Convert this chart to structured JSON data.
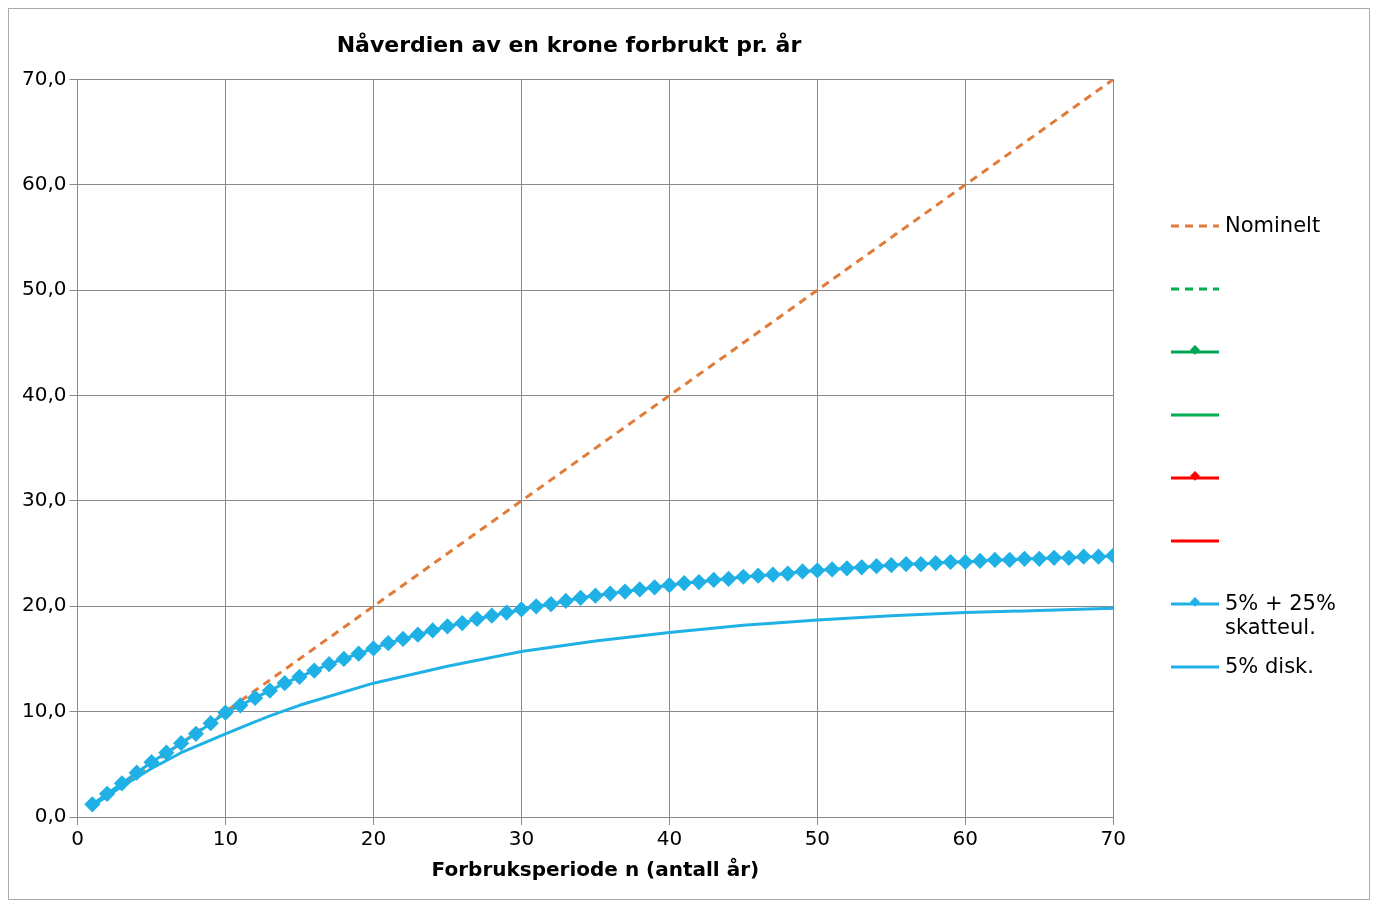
{
  "chart_data": {
    "type": "line",
    "title": "Nåverdien av en krone forbrukt pr. år",
    "xlabel": "Forbruksperiode n (antall år)",
    "xlim": [
      0,
      70
    ],
    "xticks": [
      0,
      10,
      20,
      30,
      40,
      50,
      60,
      70
    ],
    "ylim": [
      0,
      70
    ],
    "yticks": [
      {
        "value": 0,
        "label": "0,0"
      },
      {
        "value": 10,
        "label": "10,0"
      },
      {
        "value": 20,
        "label": "20,0"
      },
      {
        "value": 30,
        "label": "30,0"
      },
      {
        "value": 40,
        "label": "40,0"
      },
      {
        "value": 50,
        "label": "50,0"
      },
      {
        "value": 60,
        "label": "60,0"
      },
      {
        "value": 70,
        "label": "70,0"
      }
    ],
    "grid": true,
    "legend": "right",
    "series": [
      {
        "name": "Nominelt",
        "color": "#e07b39",
        "line_style": "dashed",
        "marker": "none",
        "x": [
          1,
          70
        ],
        "values": [
          1,
          70
        ]
      },
      {
        "color": "#00b050",
        "line_style": "dashed",
        "marker": "none"
      },
      {
        "color": "#00a550",
        "line_style": "solid",
        "marker": "diamond"
      },
      {
        "color": "#00b050",
        "line_style": "solid",
        "marker": "none"
      },
      {
        "color": "#ff0000",
        "line_style": "solid",
        "marker": "diamond"
      },
      {
        "color": "#ff0000",
        "line_style": "solid",
        "marker": "none"
      },
      {
        "name": "5% + 25% skatteul.",
        "color": "#1fb1e6",
        "line_style": "solid",
        "marker": "diamond",
        "x": [
          1,
          2,
          3,
          4,
          5,
          6,
          7,
          8,
          9,
          10,
          11,
          12,
          13,
          14,
          15,
          16,
          17,
          18,
          19,
          20,
          21,
          22,
          23,
          24,
          25,
          26,
          27,
          28,
          29,
          30,
          31,
          32,
          33,
          34,
          35,
          36,
          37,
          38,
          39,
          40,
          41,
          42,
          43,
          44,
          45,
          46,
          47,
          48,
          49,
          50,
          51,
          52,
          53,
          54,
          55,
          56,
          57,
          58,
          59,
          60,
          61,
          62,
          63,
          64,
          65,
          66,
          67,
          68,
          69,
          70
        ],
        "values": [
          1.2,
          2.2,
          3.2,
          4.2,
          5.2,
          6.1,
          7.0,
          7.9,
          8.9,
          9.9,
          10.6,
          11.3,
          12.0,
          12.7,
          13.3,
          13.9,
          14.5,
          15.0,
          15.5,
          16.0,
          16.5,
          16.9,
          17.3,
          17.7,
          18.1,
          18.4,
          18.8,
          19.1,
          19.4,
          19.7,
          20.0,
          20.2,
          20.5,
          20.8,
          21.0,
          21.2,
          21.4,
          21.6,
          21.8,
          22.0,
          22.2,
          22.3,
          22.5,
          22.6,
          22.8,
          22.9,
          23.0,
          23.1,
          23.3,
          23.4,
          23.5,
          23.6,
          23.7,
          23.8,
          23.9,
          24.0,
          24.0,
          24.1,
          24.2,
          24.2,
          24.3,
          24.4,
          24.4,
          24.5,
          24.5,
          24.6,
          24.6,
          24.7,
          24.7,
          24.8
        ]
      },
      {
        "name": "5% disk.",
        "color": "#1fb1e6",
        "line_style": "solid",
        "marker": "none",
        "x": [
          1,
          2,
          3,
          5,
          7,
          10,
          13,
          15,
          20,
          25,
          30,
          35,
          40,
          45,
          50,
          55,
          60,
          65,
          70
        ],
        "values": [
          1.0,
          2.0,
          2.9,
          4.6,
          6.1,
          7.9,
          9.6,
          10.6,
          12.7,
          14.3,
          15.7,
          16.7,
          17.5,
          18.2,
          18.7,
          19.1,
          19.4,
          19.6,
          19.8
        ]
      }
    ]
  }
}
